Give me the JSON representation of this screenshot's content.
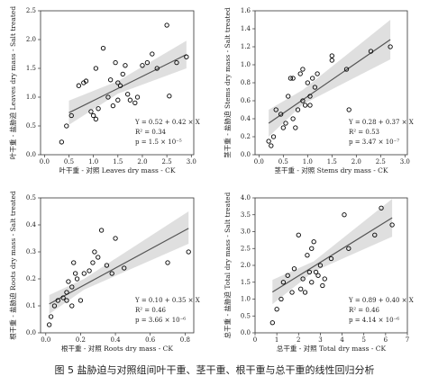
{
  "chart_data": [
    {
      "type": "scatter",
      "color": "#000000",
      "x_label": "叶干重 - 对照 Leaves dry mass - CK",
      "y_label": "叶干重 - 盐胁迫 Leaves dry mass - Salt treated",
      "annotations": [
        "Y = 0.52 + 0.42 × X",
        "R² = 0.34",
        "p = 1.5 × 10⁻⁵"
      ],
      "xlim": [
        -0.08,
        3.05
      ],
      "ylim": [
        0,
        2.5
      ],
      "xticks": [
        {
          "value": 0,
          "label": "0.0"
        },
        0.5,
        {
          "value": 1,
          "label": "1.0"
        },
        1.5,
        {
          "value": 2,
          "label": "2.0"
        },
        2.5,
        {
          "value": 3,
          "label": "3.0"
        }
      ],
      "yticks": [
        {
          "value": 0,
          "label": "0.0"
        },
        0.5,
        {
          "value": 1,
          "label": "1.0"
        },
        1.5,
        {
          "value": 2,
          "label": "2.0"
        },
        2.5
      ],
      "x": [
        0.35,
        0.45,
        0.55,
        0.7,
        0.8,
        0.85,
        0.95,
        1.0,
        1.05,
        1.05,
        1.1,
        1.2,
        1.3,
        1.35,
        1.4,
        1.45,
        1.5,
        1.5,
        1.55,
        1.6,
        1.65,
        1.7,
        1.75,
        1.85,
        1.9,
        2.0,
        2.1,
        2.2,
        2.3,
        2.5,
        2.55,
        2.7,
        2.9
      ],
      "values": [
        0.22,
        0.5,
        0.68,
        1.2,
        1.25,
        1.28,
        0.75,
        0.68,
        0.62,
        1.5,
        0.8,
        1.85,
        1.0,
        1.3,
        0.85,
        1.6,
        0.95,
        1.25,
        1.2,
        1.4,
        1.55,
        1.05,
        0.95,
        0.9,
        1.0,
        1.55,
        1.6,
        1.75,
        1.5,
        2.25,
        1.02,
        1.6,
        1.7
      ],
      "fit": {
        "x": [
          0.5,
          2.9
        ],
        "y": [
          0.73,
          1.74
        ]
      },
      "band": {
        "x": [
          0.5,
          1.5,
          2.9
        ],
        "lower": [
          0.52,
          1.06,
          1.5
        ],
        "upper": [
          0.94,
          1.28,
          1.98
        ]
      }
    },
    {
      "type": "scatter",
      "color": "#000000",
      "x_label": "茎干重 - 对照 Stems dry mass - CK",
      "y_label": "茎干重 - 盐胁迫 Stems dry mass - Salt treated",
      "annotations": [
        "Y = 0.28 + 0.37 × X",
        "R² = 0.53",
        "p = 3.47 × 10⁻⁷"
      ],
      "xlim": [
        -0.08,
        3.05
      ],
      "ylim": [
        0,
        1.6
      ],
      "xticks": [
        {
          "value": 0,
          "label": "0.0"
        },
        0.5,
        {
          "value": 1,
          "label": "1.0"
        },
        1.5,
        {
          "value": 2,
          "label": "2.0"
        },
        2.5,
        {
          "value": 3,
          "label": "3.0"
        }
      ],
      "yticks": [
        {
          "value": 0,
          "label": "0.0"
        },
        0.2,
        0.4,
        0.6,
        0.8,
        {
          "value": 1,
          "label": "1.0"
        },
        1.2,
        1.4,
        1.6
      ],
      "x": [
        0.2,
        0.25,
        0.3,
        0.35,
        0.45,
        0.5,
        0.55,
        0.6,
        0.65,
        0.7,
        0.7,
        0.75,
        0.8,
        0.85,
        0.9,
        0.9,
        0.95,
        1.0,
        1.05,
        1.05,
        1.1,
        1.15,
        1.2,
        1.5,
        1.5,
        1.8,
        1.85,
        2.3,
        2.7
      ],
      "values": [
        0.15,
        0.1,
        0.2,
        0.5,
        0.45,
        0.3,
        0.35,
        0.65,
        0.85,
        0.85,
        0.4,
        0.3,
        0.5,
        0.9,
        0.95,
        0.6,
        0.55,
        0.8,
        0.55,
        0.65,
        0.85,
        0.75,
        0.9,
        1.05,
        1.1,
        0.95,
        0.5,
        1.15,
        1.2
      ],
      "fit": {
        "x": [
          0.2,
          2.7
        ],
        "y": [
          0.35,
          1.28
        ]
      },
      "band": {
        "x": [
          0.2,
          0.9,
          2.7
        ],
        "lower": [
          0.2,
          0.56,
          1.06
        ],
        "upper": [
          0.5,
          0.72,
          1.5
        ]
      }
    },
    {
      "type": "scatter",
      "color": "#000000",
      "x_label": "根干重 - 对照 Roots dry mass - CK",
      "y_label": "根干重 - 盐胁迫 Roots dry mass - Salt treated",
      "annotations": [
        "Y = 0.10 + 0.35 × X",
        "R² = 0.46",
        "p = 3.66 × 10⁻⁶"
      ],
      "xlim": [
        -0.03,
        0.85
      ],
      "ylim": [
        0,
        0.5
      ],
      "xticks": [
        {
          "value": 0,
          "label": "0.0"
        },
        0.2,
        0.4,
        0.6,
        0.8
      ],
      "yticks": [
        {
          "value": 0,
          "label": "0.0"
        },
        0.1,
        0.2,
        0.3,
        0.4,
        0.5
      ],
      "x": [
        0.02,
        0.03,
        0.05,
        0.07,
        0.1,
        0.12,
        0.12,
        0.13,
        0.15,
        0.15,
        0.16,
        0.17,
        0.18,
        0.2,
        0.22,
        0.25,
        0.27,
        0.28,
        0.3,
        0.32,
        0.35,
        0.38,
        0.4,
        0.45,
        0.7,
        0.82
      ],
      "values": [
        0.03,
        0.06,
        0.1,
        0.12,
        0.13,
        0.12,
        0.15,
        0.19,
        0.1,
        0.17,
        0.26,
        0.22,
        0.2,
        0.12,
        0.22,
        0.23,
        0.26,
        0.3,
        0.28,
        0.38,
        0.25,
        0.22,
        0.35,
        0.24,
        0.26,
        0.3
      ],
      "fit": {
        "x": [
          0.02,
          0.82
        ],
        "y": [
          0.107,
          0.387
        ]
      },
      "band": {
        "x": [
          0.02,
          0.22,
          0.82
        ],
        "lower": [
          0.07,
          0.16,
          0.33
        ],
        "upper": [
          0.14,
          0.2,
          0.45
        ]
      }
    },
    {
      "type": "scatter",
      "color": "#000000",
      "x_label": "总干重 - 对照 Total dry mass - CK",
      "y_label": "总干重 - 盐胁迫 Total dry mass - Salt treated",
      "annotations": [
        "Y = 0.89 + 0.40 × X",
        "R² = 0.46",
        "p = 4.14 × 10⁻⁶"
      ],
      "xlim": [
        0,
        7
      ],
      "ylim": [
        0,
        4
      ],
      "xticks": [
        0,
        1,
        2,
        3,
        4,
        5,
        6,
        7
      ],
      "yticks": [
        {
          "value": 0,
          "label": "0.0"
        },
        0.5,
        {
          "value": 1,
          "label": "1.0"
        },
        1.5,
        {
          "value": 2,
          "label": "2.0"
        },
        2.5,
        {
          "value": 3,
          "label": "3.0"
        },
        3.5,
        {
          "value": 4,
          "label": "4.0"
        }
      ],
      "x": [
        0.8,
        1.0,
        1.2,
        1.3,
        1.5,
        1.7,
        1.8,
        2.0,
        2.1,
        2.2,
        2.3,
        2.4,
        2.5,
        2.6,
        2.6,
        2.7,
        2.8,
        2.9,
        3.0,
        3.1,
        3.2,
        3.5,
        4.1,
        4.3,
        5.8,
        6.3,
        5.5
      ],
      "values": [
        0.3,
        0.7,
        1.0,
        1.5,
        1.7,
        1.2,
        1.9,
        2.9,
        1.3,
        1.6,
        1.2,
        2.3,
        1.8,
        2.5,
        1.5,
        2.7,
        1.8,
        1.7,
        2.0,
        1.4,
        1.6,
        2.2,
        3.5,
        2.5,
        3.7,
        3.2,
        2.9
      ],
      "fit": {
        "x": [
          0.8,
          6.3
        ],
        "y": [
          1.21,
          3.41
        ]
      },
      "band": {
        "x": [
          0.8,
          2.7,
          6.3
        ],
        "lower": [
          0.85,
          1.82,
          2.85
        ],
        "upper": [
          1.57,
          2.12,
          3.97
        ]
      }
    }
  ],
  "caption": "图 5 盐胁迫与对照组间叶干重、茎干重、根干重与总干重的线性回归分析"
}
